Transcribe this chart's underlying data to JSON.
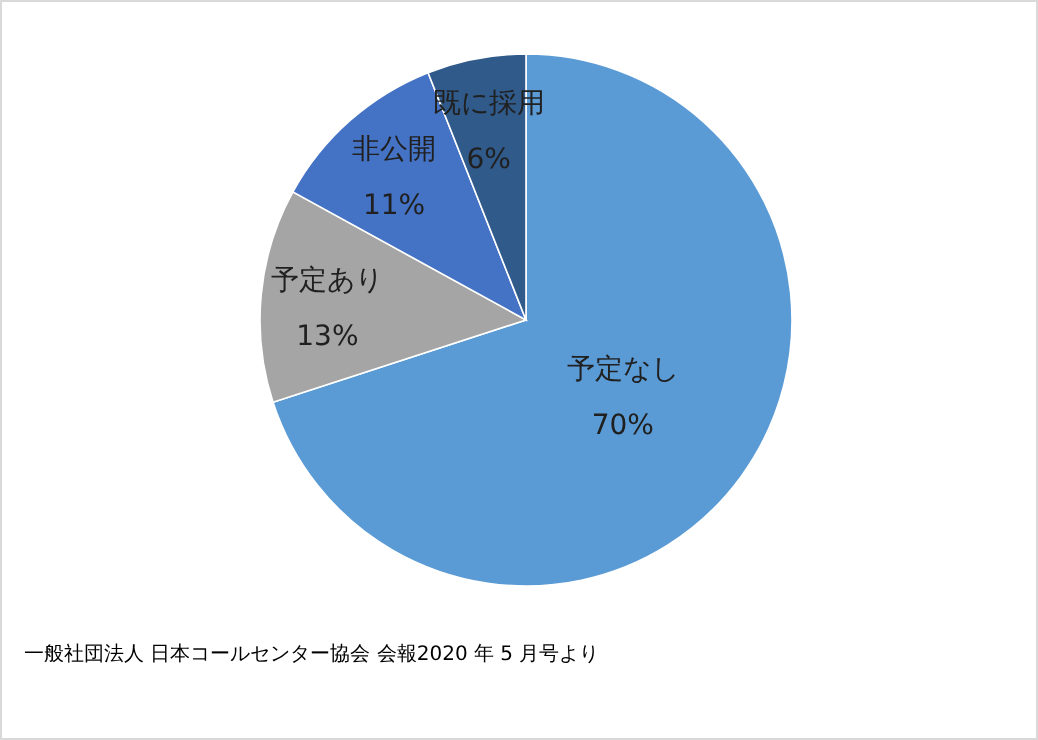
{
  "chart_data": {
    "type": "pie",
    "categories": [
      "予定なし",
      "予定あり",
      "非公開",
      "既に採用"
    ],
    "values": [
      70,
      13,
      11,
      6
    ],
    "colors": [
      "#5b9bd5",
      "#a5a5a5",
      "#4472c4",
      "#2f5a8a"
    ],
    "value_labels": [
      "70%",
      "13%",
      "11%",
      "6%"
    ],
    "annotations": [
      "一般社団法人 日本コールセンター協会 会報2020 年 5 月号より"
    ]
  }
}
